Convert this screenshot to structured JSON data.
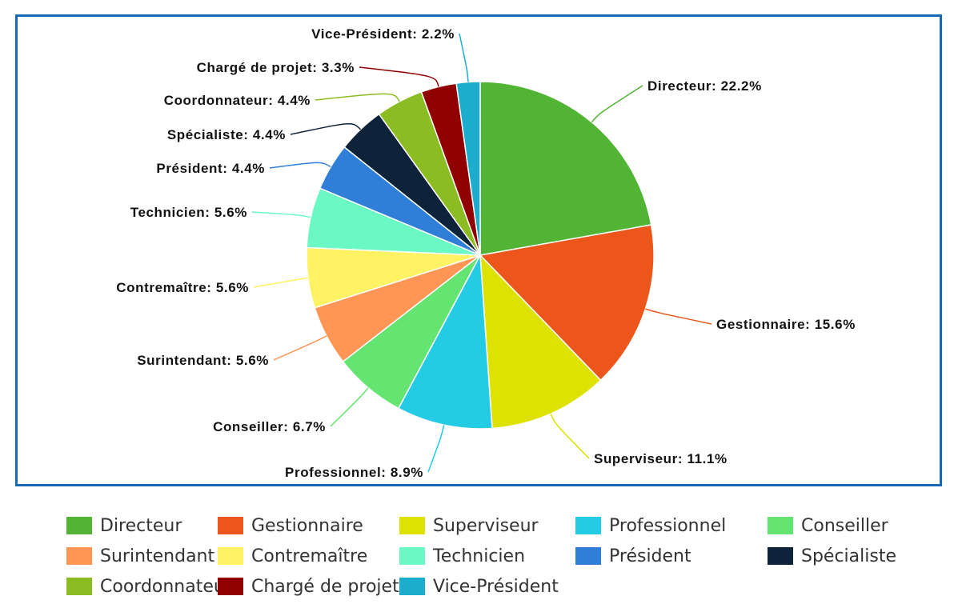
{
  "chart_data": {
    "type": "pie",
    "title": "",
    "slices": [
      {
        "label": "Directeur",
        "value": 22.2,
        "display": "Directeur: 22.2%",
        "color": "#52b434"
      },
      {
        "label": "Gestionnaire",
        "value": 15.6,
        "display": "Gestionnaire: 15.6%",
        "color": "#ed561b"
      },
      {
        "label": "Superviseur",
        "value": 11.1,
        "display": "Superviseur: 11.1%",
        "color": "#dde200"
      },
      {
        "label": "Professionnel",
        "value": 8.9,
        "display": "Professionnel: 8.9%",
        "color": "#24cbe5"
      },
      {
        "label": "Conseiller",
        "value": 6.7,
        "display": "Conseiller: 6.7%",
        "color": "#64e572"
      },
      {
        "label": "Surintendant",
        "value": 5.6,
        "display": "Surintendant: 5.6%",
        "color": "#ff9655"
      },
      {
        "label": "Contremaître",
        "value": 5.6,
        "display": "Contremaître: 5.6%",
        "color": "#fff263"
      },
      {
        "label": "Technicien",
        "value": 5.6,
        "display": "Technicien: 5.6%",
        "color": "#6af9c4"
      },
      {
        "label": "Président",
        "value": 4.4,
        "display": "Président: 4.4%",
        "color": "#2f7ed8"
      },
      {
        "label": "Spécialiste",
        "value": 4.4,
        "display": "Spécialiste: 4.4%",
        "color": "#0d233a"
      },
      {
        "label": "Coordonnateur",
        "value": 4.4,
        "display": "Coordonnateur: 4.4%",
        "color": "#8bbc21"
      },
      {
        "label": "Chargé de projet",
        "value": 3.3,
        "display": "Chargé de projet: 3.3%",
        "color": "#910000"
      },
      {
        "label": "Vice-Président",
        "value": 2.2,
        "display": "Vice-Président: 2.2%",
        "color": "#1aadce"
      }
    ],
    "legend": {
      "position": "bottom",
      "items": [
        "Directeur",
        "Gestionnaire",
        "Superviseur",
        "Professionnel",
        "Conseiller",
        "Surintendant",
        "Contremaître",
        "Technicien",
        "Président",
        "Spécialiste",
        "Coordonnateur",
        "Chargé de projet",
        "Vice-Président"
      ]
    }
  }
}
